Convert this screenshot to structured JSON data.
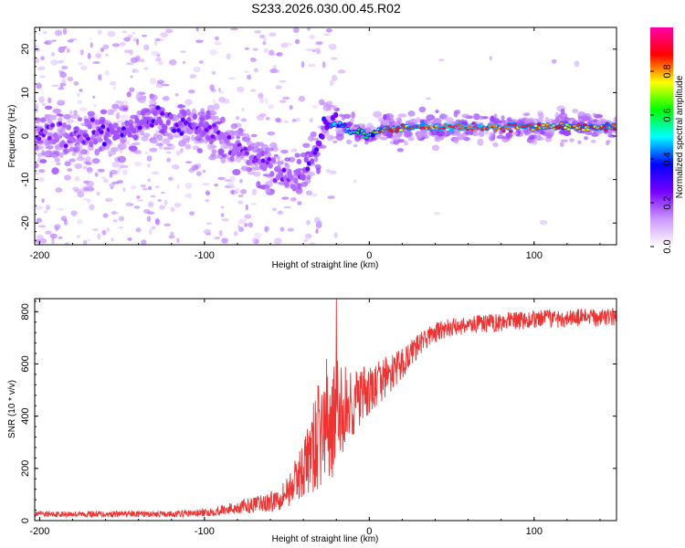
{
  "title": "S233.2026.030.00.45.R02",
  "chart_data": [
    {
      "type": "heatmap",
      "title": "",
      "xlabel": "Height of straight line (km)",
      "ylabel": "Frequency (Hz)",
      "xlim": [
        -203,
        150
      ],
      "ylim": [
        -25,
        25
      ],
      "xticks": [
        -200,
        -100,
        0,
        100
      ],
      "xtick_labels": [
        "-200",
        "-100",
        "0",
        "100"
      ],
      "yticks": [
        -20,
        -10,
        0,
        10,
        20
      ],
      "ytick_labels": [
        "-20",
        "-10",
        "0",
        "10",
        "20"
      ],
      "ridge": {
        "x": [
          -203,
          -190,
          -175,
          -160,
          -150,
          -140,
          -130,
          -120,
          -110,
          -100,
          -90,
          -80,
          -70,
          -60,
          -50,
          -45,
          -40,
          -35,
          -30,
          -28,
          -25,
          -20,
          -15,
          -10,
          -5,
          0,
          5,
          10,
          15,
          20,
          40,
          60,
          80,
          100,
          120,
          150
        ],
        "y": [
          0,
          0,
          0,
          0,
          1,
          3,
          4,
          3,
          3,
          2,
          0,
          -3,
          -5,
          -7,
          -10,
          -10,
          -8,
          -5,
          -1,
          3,
          4,
          3,
          2,
          1,
          1,
          0,
          1,
          2,
          1,
          2,
          2,
          2,
          2,
          2,
          2,
          2
        ],
        "amplitude": [
          0.25,
          0.25,
          0.25,
          0.3,
          0.3,
          0.3,
          0.3,
          0.3,
          0.3,
          0.3,
          0.25,
          0.25,
          0.25,
          0.25,
          0.25,
          0.25,
          0.3,
          0.3,
          0.4,
          0.45,
          0.45,
          0.45,
          0.45,
          0.55,
          0.6,
          0.6,
          0.8,
          0.85,
          0.85,
          0.85,
          0.9,
          0.95,
          0.9,
          0.85,
          0.8,
          0.85
        ]
      },
      "colorbar": {
        "label": "Normalized spectral amplitude",
        "range": [
          0,
          1
        ],
        "ticks": [
          0.0,
          0.2,
          0.4,
          0.6,
          0.8
        ],
        "tick_labels": [
          "0.0",
          "0.2",
          "0.4",
          "0.6",
          "0.8"
        ],
        "colors": [
          "#ffffff",
          "#cc99ff",
          "#7700ff",
          "#0000ff",
          "#00ffff",
          "#00ff00",
          "#ffff00",
          "#ff0000",
          "#ff00aa"
        ]
      }
    },
    {
      "type": "line",
      "title": "",
      "xlabel": "Height of straight line (km)",
      "ylabel": "SNR (10 * v/v)",
      "xlim": [
        -203,
        150
      ],
      "ylim": [
        0,
        850
      ],
      "xticks": [
        -200,
        -100,
        0,
        100
      ],
      "xtick_labels": [
        "-200",
        "-100",
        "0",
        "100"
      ],
      "yticks": [
        0,
        200,
        400,
        600,
        800
      ],
      "ytick_labels": [
        "0",
        "200",
        "400",
        "600",
        "800"
      ],
      "series": [
        {
          "name": "SNR",
          "color": "#ee3333",
          "x": [
            -203,
            -180,
            -160,
            -140,
            -120,
            -100,
            -90,
            -80,
            -70,
            -60,
            -55,
            -50,
            -45,
            -40,
            -35,
            -30,
            -25,
            -20,
            -15,
            -10,
            -5,
            0,
            5,
            10,
            15,
            20,
            25,
            30,
            35,
            40,
            50,
            60,
            80,
            100,
            120,
            150
          ],
          "y": [
            25,
            25,
            25,
            25,
            25,
            30,
            40,
            50,
            60,
            70,
            90,
            110,
            150,
            200,
            260,
            330,
            380,
            400,
            430,
            450,
            470,
            490,
            520,
            550,
            570,
            600,
            640,
            670,
            700,
            720,
            740,
            750,
            760,
            770,
            775,
            780
          ],
          "spread": [
            10,
            12,
            12,
            12,
            12,
            15,
            20,
            25,
            30,
            40,
            50,
            60,
            80,
            110,
            160,
            220,
            260,
            220,
            170,
            140,
            120,
            100,
            90,
            80,
            70,
            60,
            50,
            45,
            40,
            40,
            35,
            35,
            35,
            35,
            35,
            35
          ],
          "peak": {
            "x": -20,
            "y": 850
          }
        }
      ]
    }
  ]
}
